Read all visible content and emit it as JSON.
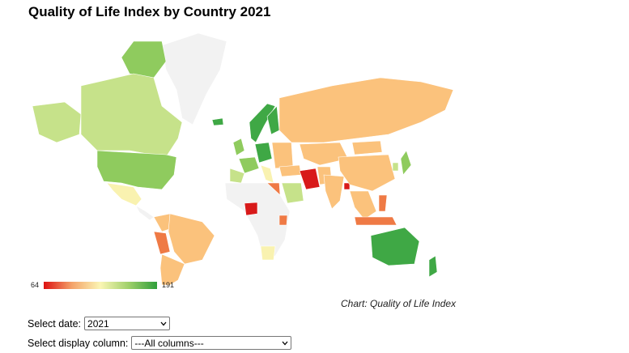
{
  "title": "Quality of Life Index by Country 2021",
  "legend": {
    "min": "64",
    "max": "191",
    "colors": [
      "#dd1111",
      "#f4a36a",
      "#fbf6b4",
      "#9fd06a",
      "#2f9e3a"
    ]
  },
  "source": "Chart: Quality of Life Index",
  "controls": {
    "date_label": "Select date:",
    "date_value": "2021",
    "column_label": "Select display column:",
    "column_value": "---All columns---"
  },
  "map_colors": {
    "no_data": "#f2f2f2",
    "high": "#3fa845",
    "upper": "#8fcb5e",
    "mid_high": "#c6e28a",
    "mid": "#f9f2b0",
    "mid_low": "#fbc27c",
    "low": "#ef7a45",
    "lowest": "#d81a1a"
  }
}
